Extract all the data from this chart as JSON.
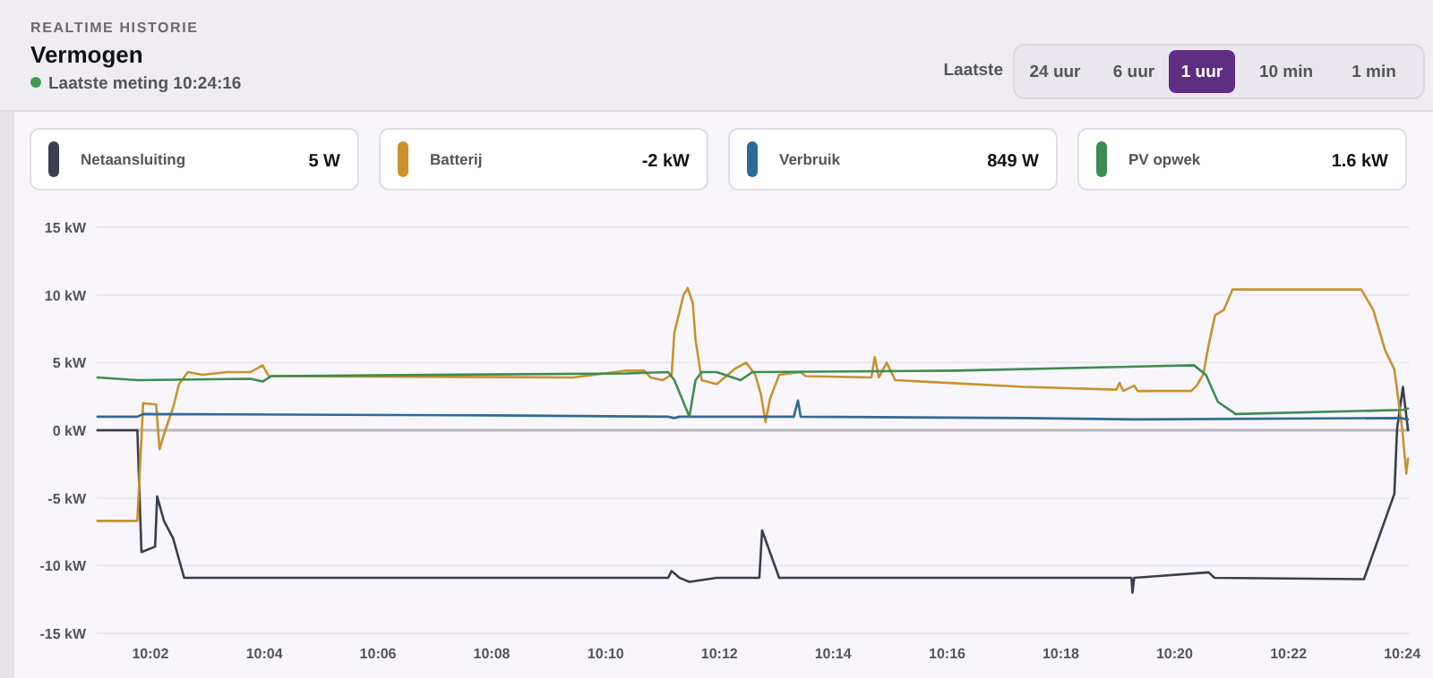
{
  "chart_data": {
    "type": "line",
    "title": "Vermogen",
    "subtitle": "Laatste meting 10:24:16",
    "annotations": [
      "REALTIME HISTORIE",
      "Laatste",
      "24 uur",
      "6 uur",
      "1 uur",
      "10 min",
      "1 min",
      "5 W",
      "-2 kW",
      "849 W",
      "1.6 kW"
    ],
    "xlim": [
      10.0176,
      10.4022
    ],
    "xticks": [
      {
        "value": 10.0333,
        "label": "10:02"
      },
      {
        "value": 10.0667,
        "label": "10:04"
      },
      {
        "value": 10.1,
        "label": "10:06"
      },
      {
        "value": 10.1333,
        "label": "10:08"
      },
      {
        "value": 10.1667,
        "label": "10:10"
      },
      {
        "value": 10.2,
        "label": "10:12"
      },
      {
        "value": 10.2333,
        "label": "10:14"
      },
      {
        "value": 10.2667,
        "label": "10:16"
      },
      {
        "value": 10.3,
        "label": "10:18"
      },
      {
        "value": 10.3333,
        "label": "10:20"
      },
      {
        "value": 10.3667,
        "label": "10:22"
      },
      {
        "value": 10.4,
        "label": "10:24"
      }
    ],
    "ylim": [
      -15,
      15
    ],
    "yticks": [
      {
        "value": -15,
        "label": "-15 kW"
      },
      {
        "value": -10,
        "label": "-10 kW"
      },
      {
        "value": -5,
        "label": "-5 kW"
      },
      {
        "value": 0,
        "label": "0 kW"
      },
      {
        "value": 5,
        "label": "5 kW"
      },
      {
        "value": 10,
        "label": "10 kW"
      },
      {
        "value": 15,
        "label": "15 kW"
      }
    ],
    "grid": "y",
    "legend": "top",
    "marker": "none",
    "line_style": "solid",
    "ref_lines": [
      {
        "axis": "y",
        "value": 0,
        "color": "#b9b7bd"
      }
    ],
    "series": [
      {
        "name": "Netaansluiting",
        "color": "#3b3f4c",
        "x": [
          10.0178,
          10.0295,
          10.0307,
          10.0347,
          10.0353,
          10.0373,
          10.04,
          10.0432,
          10.185,
          10.186,
          10.1883,
          10.1912,
          10.1992,
          10.2117,
          10.2125,
          10.2175,
          10.2227,
          10.3207,
          10.321,
          10.3215,
          10.3433,
          10.345,
          10.3888,
          10.3977,
          10.3985,
          10.4002,
          10.4017
        ],
        "values": [
          0,
          0,
          -9.0,
          -8.6,
          -4.9,
          -6.7,
          -8.0,
          -10.9,
          -10.9,
          -10.4,
          -10.9,
          -11.2,
          -10.9,
          -10.9,
          -7.4,
          -10.9,
          -10.9,
          -10.9,
          -12.0,
          -10.9,
          -10.5,
          -10.9,
          -11.0,
          -4.7,
          0.1,
          3.2,
          0
        ]
      },
      {
        "name": "Batterij",
        "color": "#c8922e",
        "x": [
          10.0178,
          10.0295,
          10.0312,
          10.035,
          10.036,
          10.0373,
          10.04,
          10.0417,
          10.0443,
          10.0487,
          10.0557,
          10.0627,
          10.0662,
          10.068,
          10.1572,
          10.1728,
          10.178,
          10.1798,
          10.1833,
          10.186,
          10.1868,
          10.1895,
          10.1907,
          10.1922,
          10.193,
          10.1948,
          10.1992,
          10.2043,
          10.2078,
          10.2105,
          10.2122,
          10.2135,
          10.2148,
          10.2175,
          10.2237,
          10.2253,
          10.2445,
          10.2455,
          10.2467,
          10.249,
          10.2515,
          10.2892,
          10.3163,
          10.3172,
          10.3183,
          10.3215,
          10.3225,
          10.3382,
          10.3398,
          10.3417,
          10.3433,
          10.3452,
          10.3478,
          10.3503,
          10.388,
          10.3915,
          10.395,
          10.3977,
          10.4,
          10.4012,
          10.4017
        ],
        "values": [
          -6.7,
          -6.7,
          2.0,
          1.9,
          -1.4,
          -0.3,
          1.7,
          3.4,
          4.3,
          4.1,
          4.3,
          4.3,
          4.8,
          4.0,
          3.9,
          4.4,
          4.4,
          3.9,
          3.7,
          4.1,
          7.2,
          10.0,
          10.5,
          9.4,
          6.7,
          3.7,
          3.4,
          4.5,
          5.0,
          4.1,
          2.6,
          0.6,
          2.3,
          4.1,
          4.3,
          4.0,
          3.9,
          5.4,
          3.9,
          5.0,
          3.7,
          3.2,
          3.0,
          3.5,
          2.9,
          3.3,
          2.9,
          2.9,
          3.3,
          4.1,
          6.3,
          8.5,
          8.9,
          10.4,
          10.4,
          8.9,
          5.9,
          4.5,
          0.1,
          -3.2,
          -2.1
        ]
      },
      {
        "name": "Verbruik",
        "color": "#2f6a94",
        "x": [
          10.0178,
          10.0295,
          10.0312,
          10.1333,
          10.185,
          10.1867,
          10.1883,
          10.2218,
          10.223,
          10.2238,
          10.2892,
          10.3215,
          10.3993,
          10.4017
        ],
        "values": [
          1.0,
          1.0,
          1.2,
          1.1,
          1.0,
          0.9,
          1.0,
          1.0,
          2.2,
          1.0,
          0.9,
          0.8,
          0.9,
          0.8
        ]
      },
      {
        "name": "PV opwek",
        "color": "#3d8c52",
        "x": [
          10.0178,
          10.0295,
          10.0627,
          10.0662,
          10.0688,
          10.1728,
          10.185,
          10.1868,
          10.1912,
          10.193,
          10.1948,
          10.1992,
          10.2062,
          10.2097,
          10.269,
          10.339,
          10.3425,
          10.346,
          10.3512,
          10.4002,
          10.4017
        ],
        "values": [
          3.9,
          3.7,
          3.8,
          3.6,
          4.0,
          4.2,
          4.3,
          3.7,
          1.0,
          3.7,
          4.3,
          4.3,
          3.7,
          4.3,
          4.4,
          4.8,
          4.1,
          2.1,
          1.2,
          1.5,
          1.6
        ]
      }
    ]
  }
}
